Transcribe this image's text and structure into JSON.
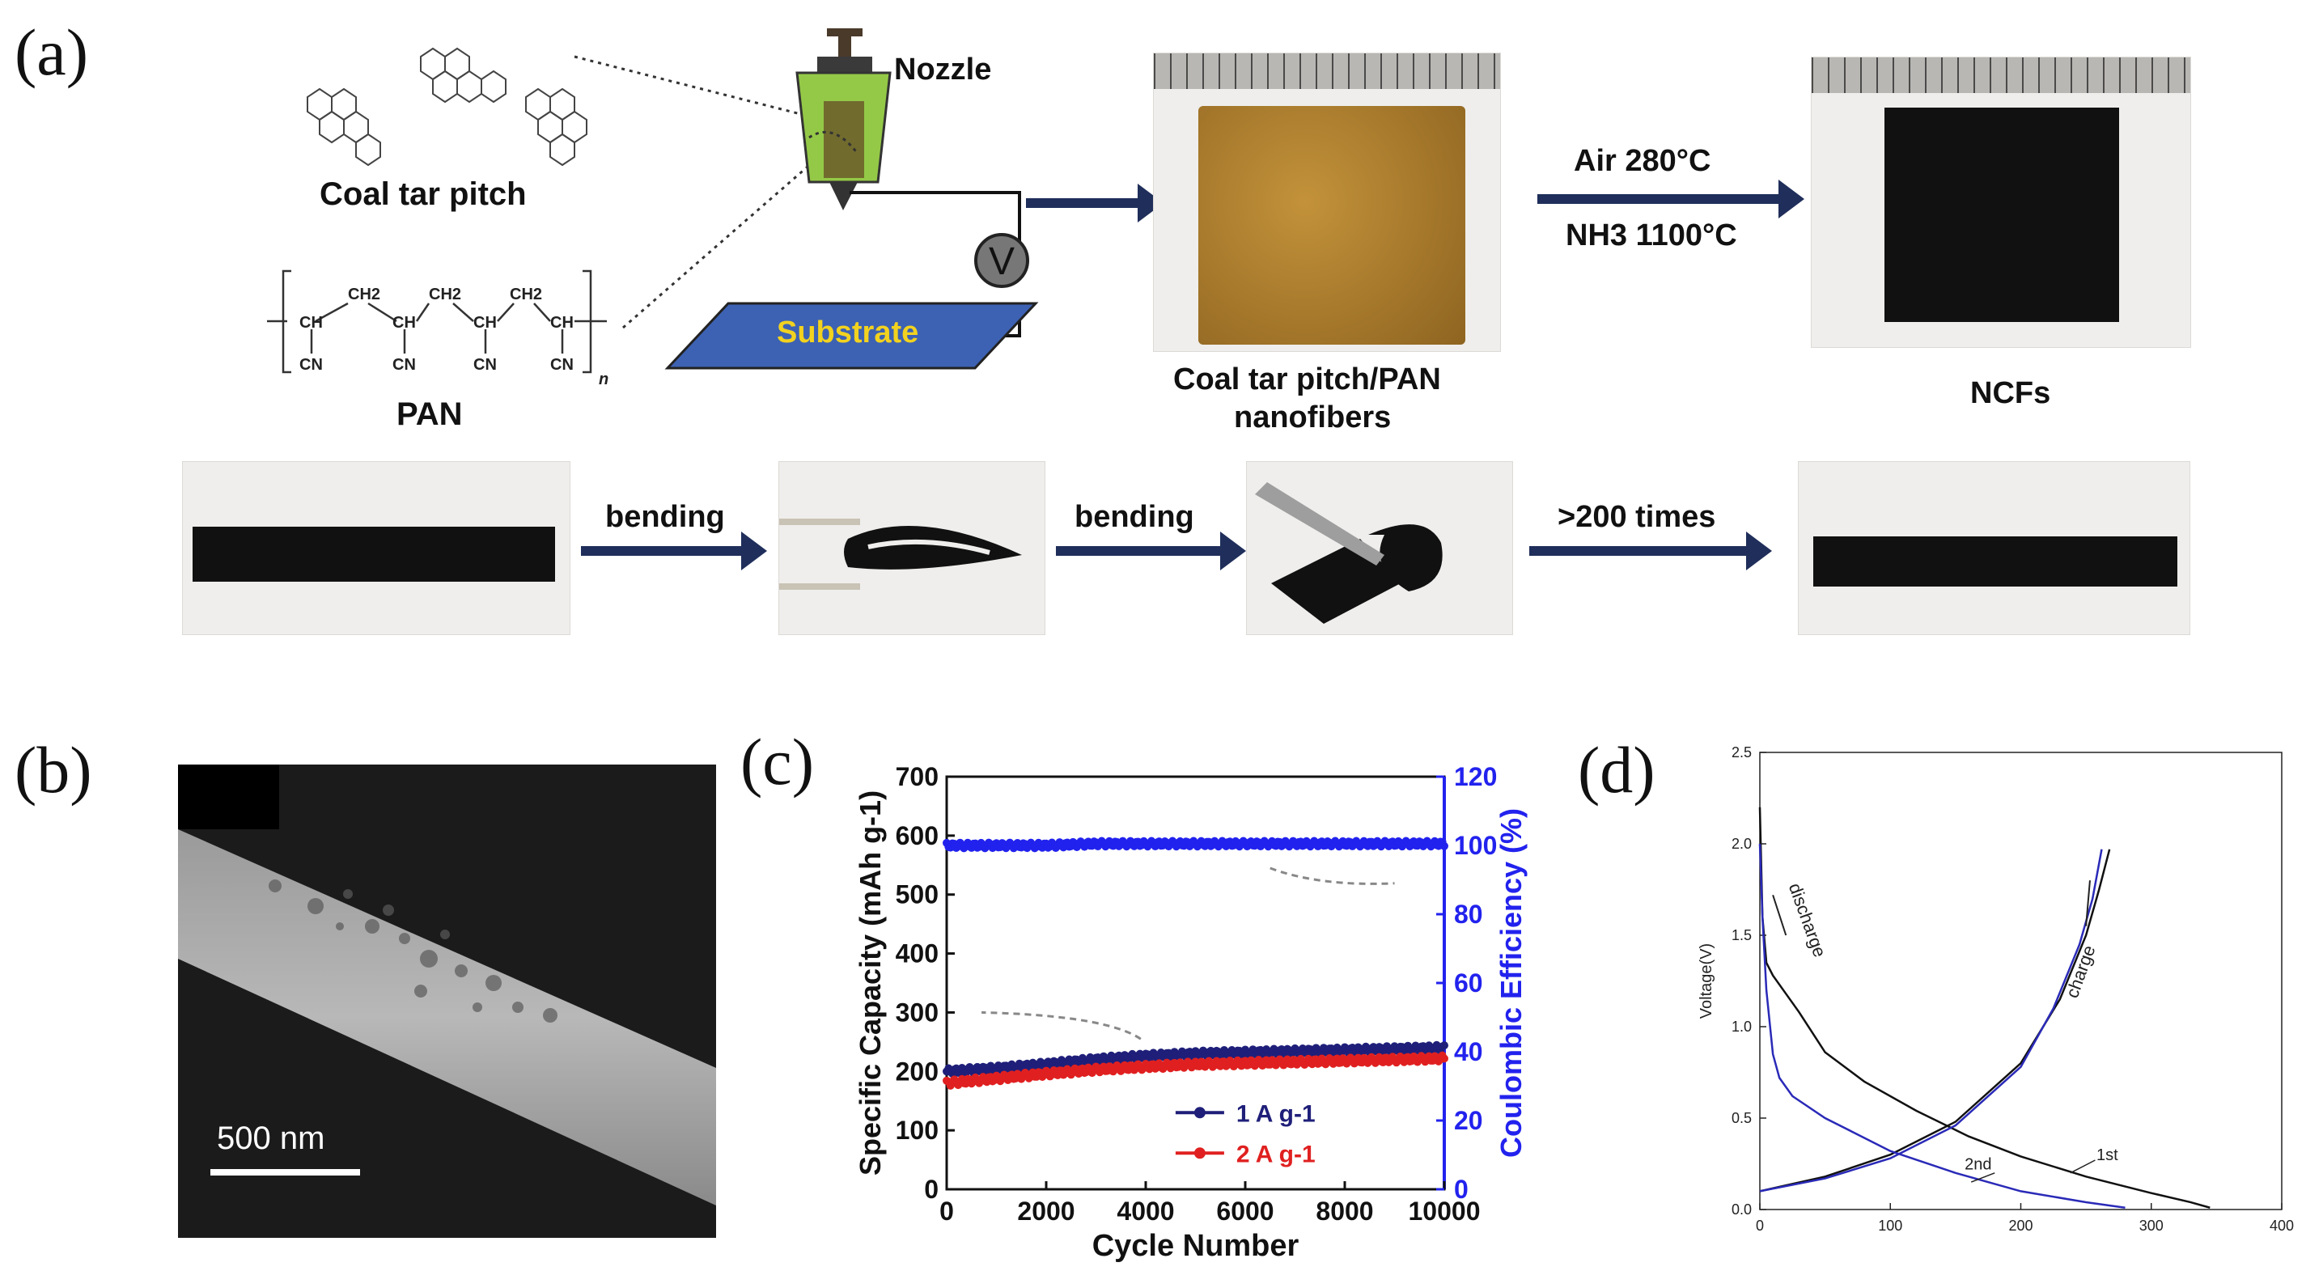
{
  "panel_a": {
    "letter": "(a)",
    "labels": {
      "coal_tar_pitch": "Coal tar pitch",
      "pan": "PAN",
      "nozzle": "Nozzle",
      "substrate": "Substrate",
      "voltage": "V",
      "fibers_line1": "Coal tar pitch/PAN",
      "fibers_line2": "nanofibers",
      "anneal_air": "Air 280°C",
      "anneal_nh3": "NH3 1100°C",
      "ncfs": "NCFs",
      "bending1": "bending",
      "bending2": "bending",
      "times": ">200 times"
    },
    "pan_formula": {
      "ch2": "CH2",
      "ch": "CH",
      "cn": "CN",
      "n": "n"
    },
    "colors": {
      "arrow": "#1f2e5a",
      "substrate": "#3d62b3",
      "substrate_text": "#f2d21f",
      "nozzle": "#94c947",
      "fiber_mat": "#a97a2a",
      "ncf": "#111111"
    }
  },
  "panel_b": {
    "letter": "(b)",
    "scale_bar": "500 nm"
  },
  "panel_c": {
    "letter": "(c)",
    "chart_data": {
      "type": "scatter",
      "xlabel": "Cycle Number",
      "ylabel": "Specific Capacity (mAh g-1)",
      "y2label": "Coulombic Efficiency (%)",
      "xlim": [
        0,
        10000
      ],
      "ylim": [
        0,
        700
      ],
      "y2lim": [
        0,
        120
      ],
      "xticks": [
        "0",
        "2000",
        "4000",
        "6000",
        "8000",
        "10000"
      ],
      "yticks": [
        "0",
        "100",
        "200",
        "300",
        "400",
        "500",
        "600",
        "700"
      ],
      "y2ticks": [
        "0",
        "20",
        "40",
        "60",
        "80",
        "100",
        "120"
      ],
      "series": [
        {
          "name": "1 A g-1",
          "color": "#1f1f7a",
          "x": [
            0,
            1000,
            2000,
            3000,
            4000,
            5000,
            6000,
            7000,
            8000,
            9000,
            10000
          ],
          "y": [
            200,
            205,
            212,
            220,
            226,
            230,
            232,
            234,
            236,
            238,
            240
          ]
        },
        {
          "name": "2 A g-1",
          "color": "#e02020",
          "x": [
            0,
            1000,
            2000,
            3000,
            4000,
            5000,
            6000,
            7000,
            8000,
            9000,
            10000
          ],
          "y": [
            180,
            188,
            196,
            203,
            208,
            212,
            214,
            216,
            218,
            220,
            222
          ]
        },
        {
          "name": "Coulombic Efficiency",
          "axis": "y2",
          "color": "#2222ee",
          "x": [
            0,
            1000,
            2000,
            3000,
            4000,
            5000,
            6000,
            7000,
            8000,
            9000,
            10000
          ],
          "y": [
            100,
            100,
            100,
            100.5,
            100.5,
            100.5,
            100.5,
            100.5,
            100.5,
            100.5,
            100.5
          ]
        }
      ]
    }
  },
  "panel_d": {
    "letter": "(d)",
    "chart_data": {
      "type": "line",
      "xlabel": "",
      "ylabel": "Voltage(V)",
      "xlim": [
        0,
        400
      ],
      "ylim": [
        0,
        2.5
      ],
      "xticks": [
        "0",
        "100",
        "200",
        "300",
        "400"
      ],
      "yticks": [
        "0.0",
        "0.5",
        "1.0",
        "1.5",
        "2.0",
        "2.5"
      ],
      "annotations": [
        "discharge",
        "charge",
        "1st",
        "2nd"
      ],
      "series": [
        {
          "name": "1st",
          "color": "#111111",
          "segments": [
            {
              "x": [
                0,
                2,
                5,
                10,
                20,
                30,
                50,
                80,
                120,
                160,
                200,
                250,
                300,
                330,
                345
              ],
              "y": [
                2.2,
                1.6,
                1.35,
                1.28,
                1.18,
                1.08,
                0.86,
                0.7,
                0.54,
                0.4,
                0.29,
                0.18,
                0.09,
                0.04,
                0.01
              ]
            },
            {
              "x": [
                0,
                50,
                100,
                150,
                200,
                230,
                250,
                260,
                268
              ],
              "y": [
                0.1,
                0.18,
                0.3,
                0.48,
                0.8,
                1.15,
                1.5,
                1.75,
                1.97
              ]
            }
          ]
        },
        {
          "name": "2nd",
          "color": "#2a2ab8",
          "segments": [
            {
              "x": [
                0,
                2,
                5,
                10,
                15,
                25,
                50,
                100,
                150,
                200,
                250,
                280
              ],
              "y": [
                2.0,
                1.6,
                1.2,
                0.85,
                0.72,
                0.62,
                0.5,
                0.32,
                0.2,
                0.1,
                0.04,
                0.01
              ]
            },
            {
              "x": [
                0,
                50,
                100,
                150,
                200,
                225,
                245,
                255,
                262
              ],
              "y": [
                0.1,
                0.17,
                0.28,
                0.46,
                0.78,
                1.1,
                1.45,
                1.7,
                1.97
              ]
            }
          ]
        }
      ]
    }
  }
}
